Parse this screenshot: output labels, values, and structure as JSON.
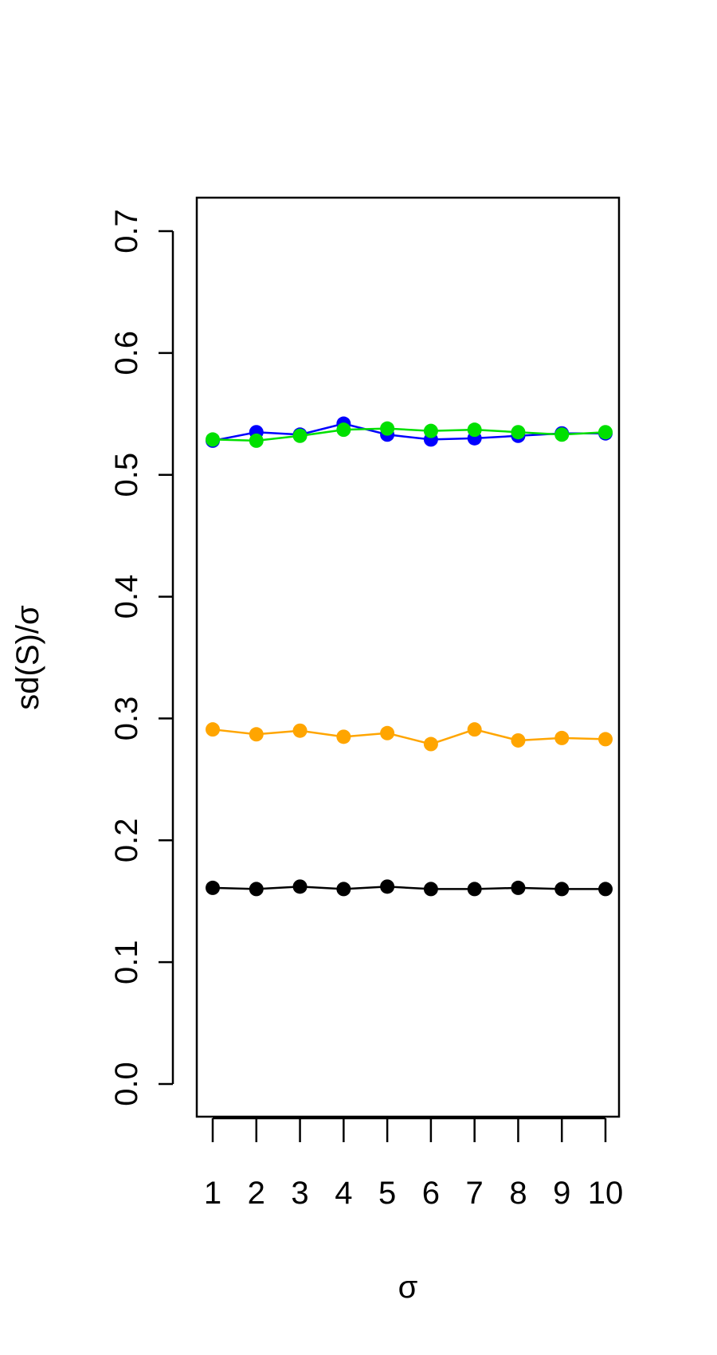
{
  "chart_data": {
    "type": "line",
    "title": "",
    "xlabel": "σ",
    "ylabel": "sd(S)/σ",
    "x": [
      1,
      2,
      3,
      4,
      5,
      6,
      7,
      8,
      9,
      10
    ],
    "x_ticks": [
      1,
      2,
      3,
      4,
      5,
      6,
      7,
      8,
      9,
      10
    ],
    "xlim": [
      1,
      10
    ],
    "ylim": [
      0.0,
      0.7
    ],
    "y_ticks": [
      "0.0",
      "0.1",
      "0.2",
      "0.3",
      "0.4",
      "0.5",
      "0.6",
      "0.7"
    ],
    "grid": false,
    "legend": "none",
    "series": [
      {
        "color": "#0000ff",
        "values": [
          0.528,
          0.535,
          0.533,
          0.542,
          0.533,
          0.529,
          0.53,
          0.532,
          0.534,
          0.534
        ]
      },
      {
        "color": "#00e000",
        "values": [
          0.529,
          0.528,
          0.532,
          0.537,
          0.538,
          0.536,
          0.537,
          0.535,
          0.533,
          0.535
        ]
      },
      {
        "color": "#ffa500",
        "values": [
          0.291,
          0.287,
          0.29,
          0.285,
          0.288,
          0.279,
          0.291,
          0.282,
          0.284,
          0.283
        ]
      },
      {
        "color": "#000000",
        "values": [
          0.161,
          0.16,
          0.162,
          0.16,
          0.162,
          0.16,
          0.16,
          0.161,
          0.16,
          0.16
        ]
      }
    ]
  }
}
